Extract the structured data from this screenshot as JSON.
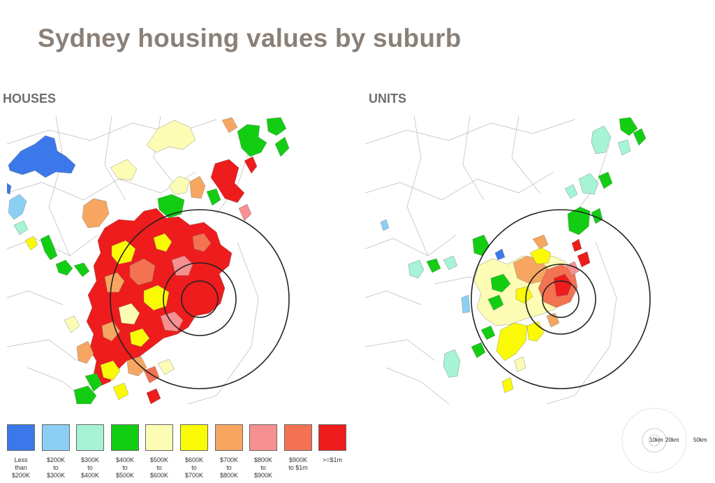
{
  "title": "Sydney housing values by suburb",
  "panels": {
    "houses": {
      "label": "HOUSES"
    },
    "units": {
      "label": "UNITS"
    }
  },
  "legend": [
    {
      "label": "Less\nthan\n$200K",
      "color": "#3b78ea"
    },
    {
      "label": "$200K\nto\n$300K",
      "color": "#8ccff5"
    },
    {
      "label": "$300K\nto\n$400K",
      "color": "#a6f3d6"
    },
    {
      "label": "$400K\nto\n$500K",
      "color": "#12cd12"
    },
    {
      "label": "$500K\nto\n$600K",
      "color": "#fcfcb4"
    },
    {
      "label": "$600K\nto\n$700K",
      "color": "#fafa06"
    },
    {
      "label": "$700K\nto\n$800K",
      "color": "#f6a660"
    },
    {
      "label": "$800K\nto\n$900K",
      "color": "#f79090"
    },
    {
      "label": "$900K\nto $1m",
      "color": "#f37252"
    },
    {
      "label": ">=$1m",
      "color": "#ee1c1c"
    }
  ],
  "scale_key": {
    "labels": [
      "10km",
      "20km",
      "50km"
    ]
  }
}
